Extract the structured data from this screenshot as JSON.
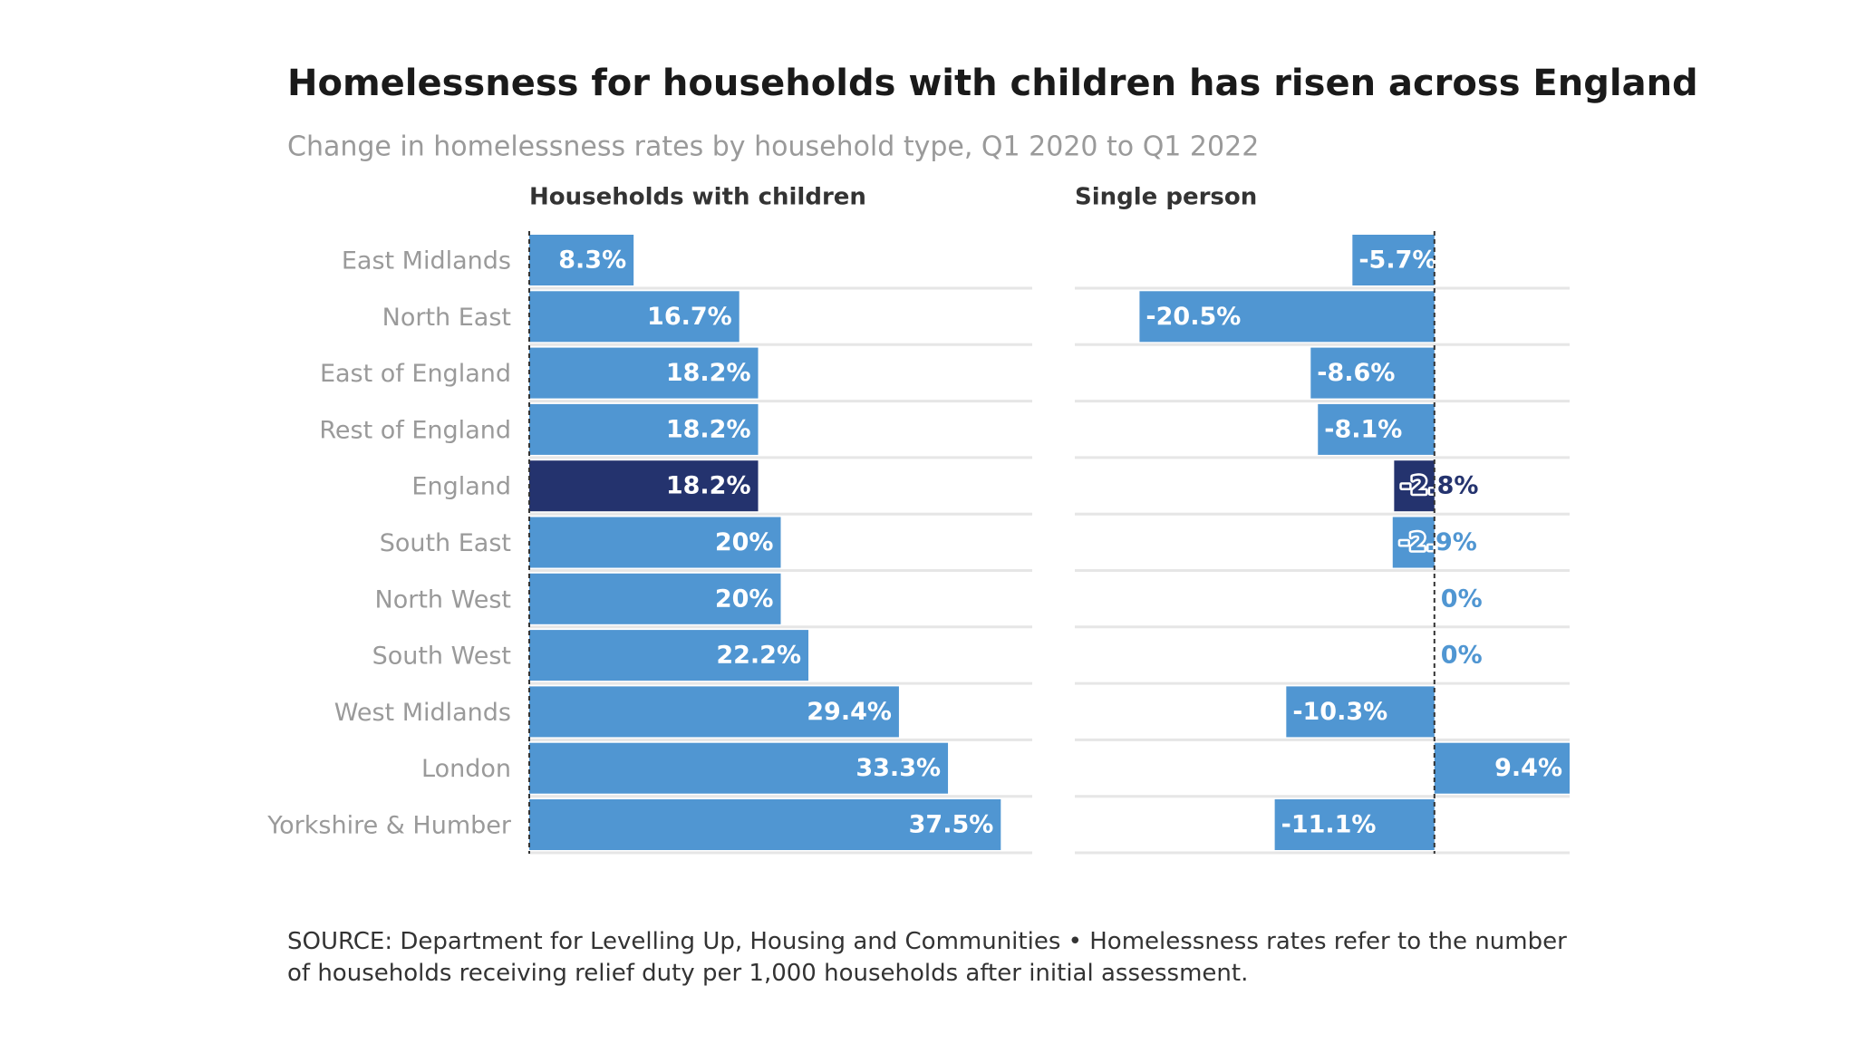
{
  "header": {
    "title": "Homelessness for households with children has risen across England",
    "subtitle": "Change in homelessness rates by household type, Q1 2020 to Q1 2022"
  },
  "chart_data": {
    "type": "bar",
    "categories": [
      "East Midlands",
      "North East",
      "East of England",
      "Rest of England",
      "England",
      "South East",
      "North West",
      "South West",
      "West Midlands",
      "London",
      "Yorkshire & Humber"
    ],
    "series": [
      {
        "name": "Households with children",
        "xlim": [
          0,
          40
        ],
        "values": [
          8.3,
          16.7,
          18.2,
          18.2,
          18.2,
          20,
          20,
          22.2,
          29.4,
          33.3,
          37.5
        ],
        "value_labels": [
          "8.3%",
          "16.7%",
          "18.2%",
          "18.2%",
          "18.2%",
          "20%",
          "20%",
          "22.2%",
          "29.4%",
          "33.3%",
          "37.5%"
        ],
        "colors": [
          "#5096d2",
          "#5096d2",
          "#5096d2",
          "#5096d2",
          "#24336e",
          "#5096d2",
          "#5096d2",
          "#5096d2",
          "#5096d2",
          "#5096d2",
          "#5096d2"
        ]
      },
      {
        "name": "Single person",
        "xlim": [
          -25,
          9.4
        ],
        "values": [
          -5.7,
          -20.5,
          -8.6,
          -8.1,
          -2.8,
          -2.9,
          0,
          0,
          -10.3,
          9.4,
          -11.1
        ],
        "value_labels": [
          "-5.7%",
          "-20.5%",
          "-8.6%",
          "-8.1%",
          "-2.8%",
          "-2.9%",
          "0%",
          "0%",
          "-10.3%",
          "9.4%",
          "-11.1%"
        ],
        "colors": [
          "#5096d2",
          "#5096d2",
          "#5096d2",
          "#5096d2",
          "#24336e",
          "#5096d2",
          "#5096d2",
          "#5096d2",
          "#5096d2",
          "#5096d2",
          "#5096d2"
        ]
      }
    ]
  },
  "footer": {
    "source": "SOURCE: Department for Levelling Up, Housing and Communities • Homelessness rates refer to the number of households receiving relief duty per 1,000 households after initial assessment."
  }
}
